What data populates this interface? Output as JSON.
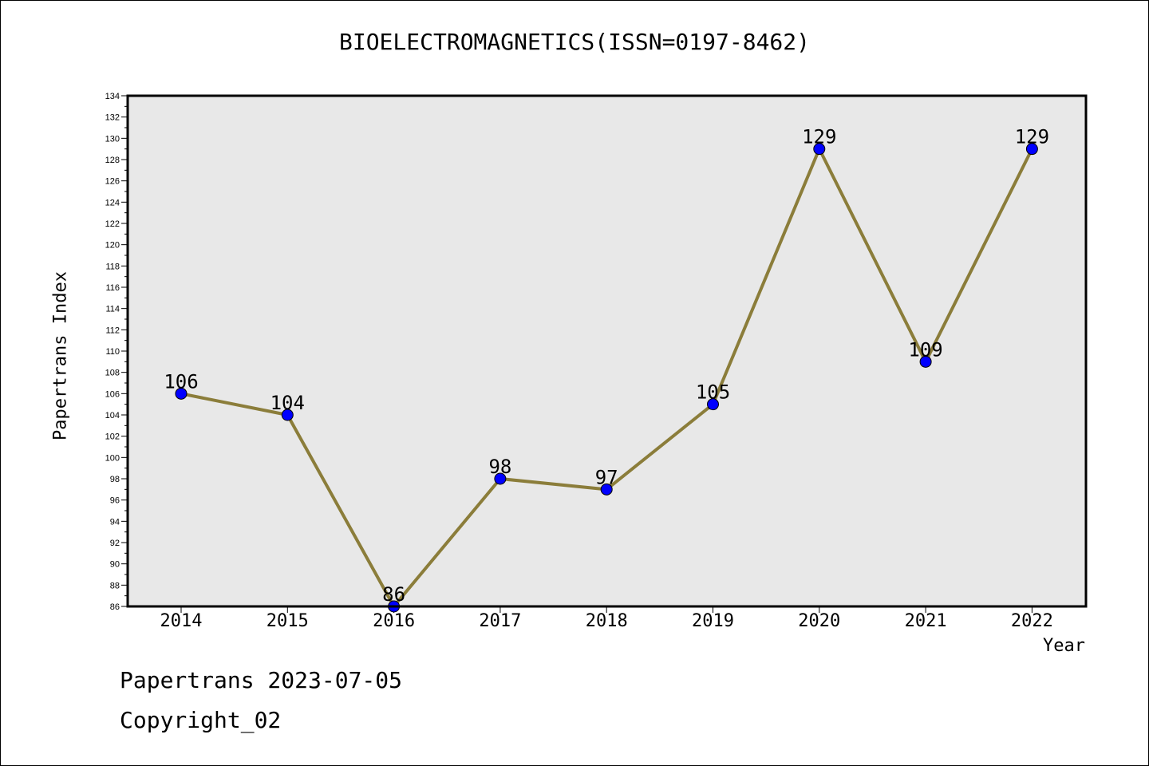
{
  "chart_data": {
    "type": "line",
    "title": "BIOELECTROMAGNETICS(ISSN=0197-8462)",
    "xlabel": "Year",
    "ylabel": "Papertrans Index",
    "categories": [
      "2014",
      "2015",
      "2016",
      "2017",
      "2018",
      "2019",
      "2020",
      "2021",
      "2022"
    ],
    "series": [
      {
        "values": [
          106,
          104,
          86,
          98,
          97,
          105,
          129,
          109,
          129
        ]
      }
    ],
    "ylim": [
      86,
      134
    ],
    "yticks": [
      86,
      88,
      90,
      92,
      94,
      96,
      98,
      100,
      102,
      104,
      106,
      108,
      110,
      112,
      114,
      116,
      118,
      120,
      122,
      124,
      126,
      128,
      130,
      132,
      134
    ],
    "grid": false,
    "data_labels": true,
    "line_color": "#8b7d3a",
    "marker_color": "#0000ff",
    "plot_background": "#e8e8e8"
  },
  "footer": {
    "date_text": "Papertrans 2023-07-05",
    "copyright_text": "Copyright_02"
  }
}
